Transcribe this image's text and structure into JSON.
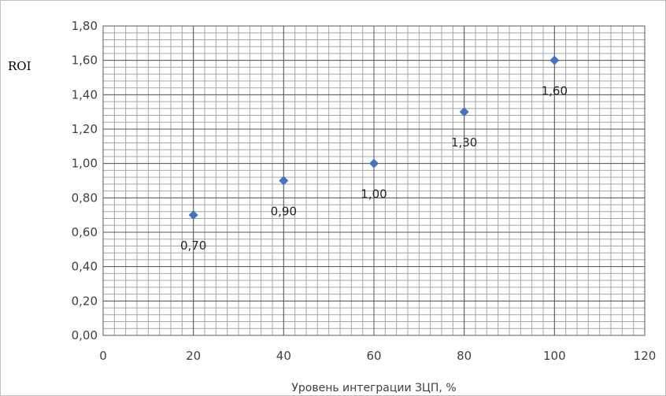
{
  "chart_data": {
    "type": "scatter",
    "xlabel": "Уровень интеграции ЗЦП, %",
    "ylabel": "ROI",
    "xlim": [
      0,
      120
    ],
    "ylim": [
      0,
      1.8
    ],
    "x_ticks": [
      "0",
      "20",
      "40",
      "60",
      "80",
      "100",
      "120"
    ],
    "y_ticks": [
      "0,00",
      "0,20",
      "0,40",
      "0,60",
      "0,80",
      "1,00",
      "1,20",
      "1,40",
      "1,60",
      "1,80"
    ],
    "grid": true,
    "legend": "none",
    "marker": "diamond",
    "series": [
      {
        "x": [
          20,
          40,
          60,
          80,
          100
        ],
        "y": [
          0.7,
          0.9,
          1.0,
          1.3,
          1.6
        ],
        "labels": [
          "0,70",
          "0,90",
          "1,00",
          "1,30",
          "1,60"
        ],
        "color": "#4472c4"
      }
    ]
  }
}
